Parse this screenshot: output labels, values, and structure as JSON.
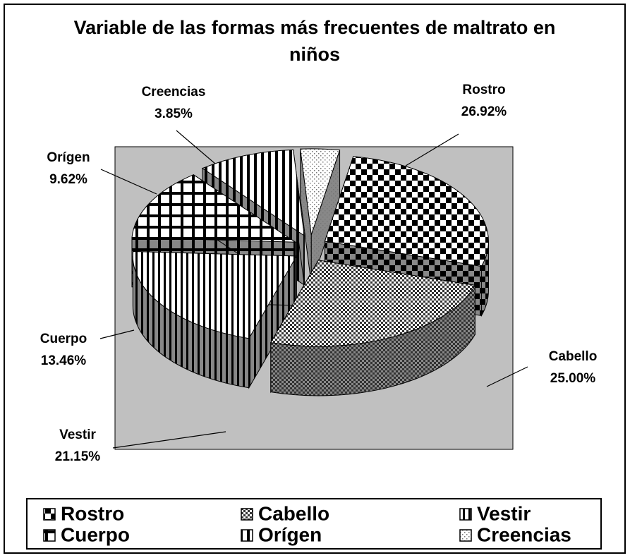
{
  "chart_data": {
    "type": "pie",
    "title": "Variable de las formas más frecuentes de maltrato en niños",
    "categories": [
      "Rostro",
      "Cabello",
      "Vestir",
      "Cuerpo",
      "Orígen",
      "Creencias"
    ],
    "values": [
      26.92,
      25.0,
      21.15,
      13.46,
      9.62,
      3.85
    ],
    "value_labels": [
      "26.92%",
      "25.00%",
      "21.15%",
      "13.46%",
      "9.62%",
      "3.85%"
    ],
    "colors": [
      "#000000",
      "#333333",
      "#000000",
      "#000000",
      "#000000",
      "#777777"
    ],
    "legend": "bottom"
  }
}
